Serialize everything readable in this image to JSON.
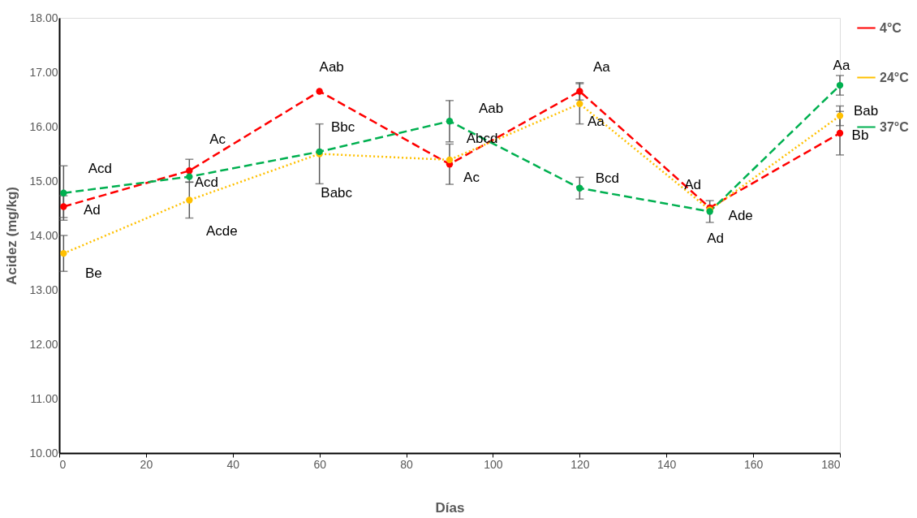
{
  "chart_data": {
    "type": "line",
    "xlabel": "Días",
    "ylabel": "Acidez (mg/kg)",
    "x": [
      1,
      30,
      60,
      90,
      120,
      150,
      180
    ],
    "xlim": [
      0,
      180
    ],
    "xticks": [
      0,
      20,
      40,
      60,
      80,
      100,
      120,
      140,
      160,
      180
    ],
    "ylim": [
      10,
      18
    ],
    "yticks": [
      {
        "value": 10,
        "label": "10.00"
      },
      {
        "value": 11,
        "label": "11.00"
      },
      {
        "value": 12,
        "label": "12.00"
      },
      {
        "value": 13,
        "label": "13.00"
      },
      {
        "value": 14,
        "label": "14.00"
      },
      {
        "value": 15,
        "label": "15.00"
      },
      {
        "value": 16,
        "label": "16.00"
      },
      {
        "value": 17,
        "label": "17.00"
      },
      {
        "value": 18,
        "label": "18.00"
      }
    ],
    "grid": false,
    "legend": "right",
    "marker": "circle",
    "series": [
      {
        "name": "4°C",
        "color": "#ff0000",
        "line_style": "dashed",
        "values": [
          14.53,
          15.19,
          16.65,
          15.31,
          16.65,
          14.51,
          15.88
        ],
        "errors": [
          0.2,
          0.21,
          null,
          0.37,
          0.16,
          null,
          0.4
        ]
      },
      {
        "name": "24°C",
        "color": "#ffc000",
        "line_style": "dotted",
        "values": [
          13.67,
          14.65,
          15.5,
          15.39,
          16.42,
          14.47,
          16.2
        ],
        "errors": [
          0.33,
          0.33,
          0.55,
          null,
          0.37,
          null,
          0.18
        ]
      },
      {
        "name": "37°C",
        "color": "#00b050",
        "line_style": "dashed",
        "values": [
          14.78,
          15.08,
          15.54,
          16.1,
          14.87,
          14.44,
          16.76
        ],
        "errors": [
          0.5,
          null,
          null,
          0.38,
          0.2,
          0.2,
          0.18
        ]
      }
    ],
    "annotations": [
      {
        "text": "Acd",
        "x": 1,
        "y": 14.78
      },
      {
        "text": "Ad",
        "x": 1,
        "y": 14.53
      },
      {
        "text": "Be",
        "x": 1,
        "y": 13.67
      },
      {
        "text": "Ac",
        "x": 36.5,
        "y": 15.51
      },
      {
        "text": "Acd",
        "x": 30,
        "y": 15.08
      },
      {
        "text": "Acde",
        "x": 30,
        "y": 14.65
      },
      {
        "text": "Aab",
        "x": 60,
        "y": 16.65
      },
      {
        "text": "Bbc",
        "x": 60,
        "y": 15.54
      },
      {
        "text": "Babc",
        "x": 60,
        "y": 15.5
      },
      {
        "text": "Aab",
        "x": 90,
        "y": 16.1
      },
      {
        "text": "Abcd",
        "x": 90,
        "y": 15.39
      },
      {
        "text": "Ac",
        "x": 90,
        "y": 15.31
      },
      {
        "text": "Aa",
        "x": 120,
        "y": 16.65
      },
      {
        "text": "Aa",
        "x": 120,
        "y": 16.42
      },
      {
        "text": "Bcd",
        "x": 120,
        "y": 14.87
      },
      {
        "text": "Ad",
        "x": 150,
        "y": 14.51
      },
      {
        "text": "Ade",
        "x": 150,
        "y": 14.47
      },
      {
        "text": "Ad",
        "x": 150,
        "y": 14.44
      },
      {
        "text": "Aa",
        "x": 180,
        "y": 16.76
      },
      {
        "text": "Bab",
        "x": 180,
        "y": 16.2
      },
      {
        "text": "Bb",
        "x": 180,
        "y": 15.88
      }
    ]
  }
}
